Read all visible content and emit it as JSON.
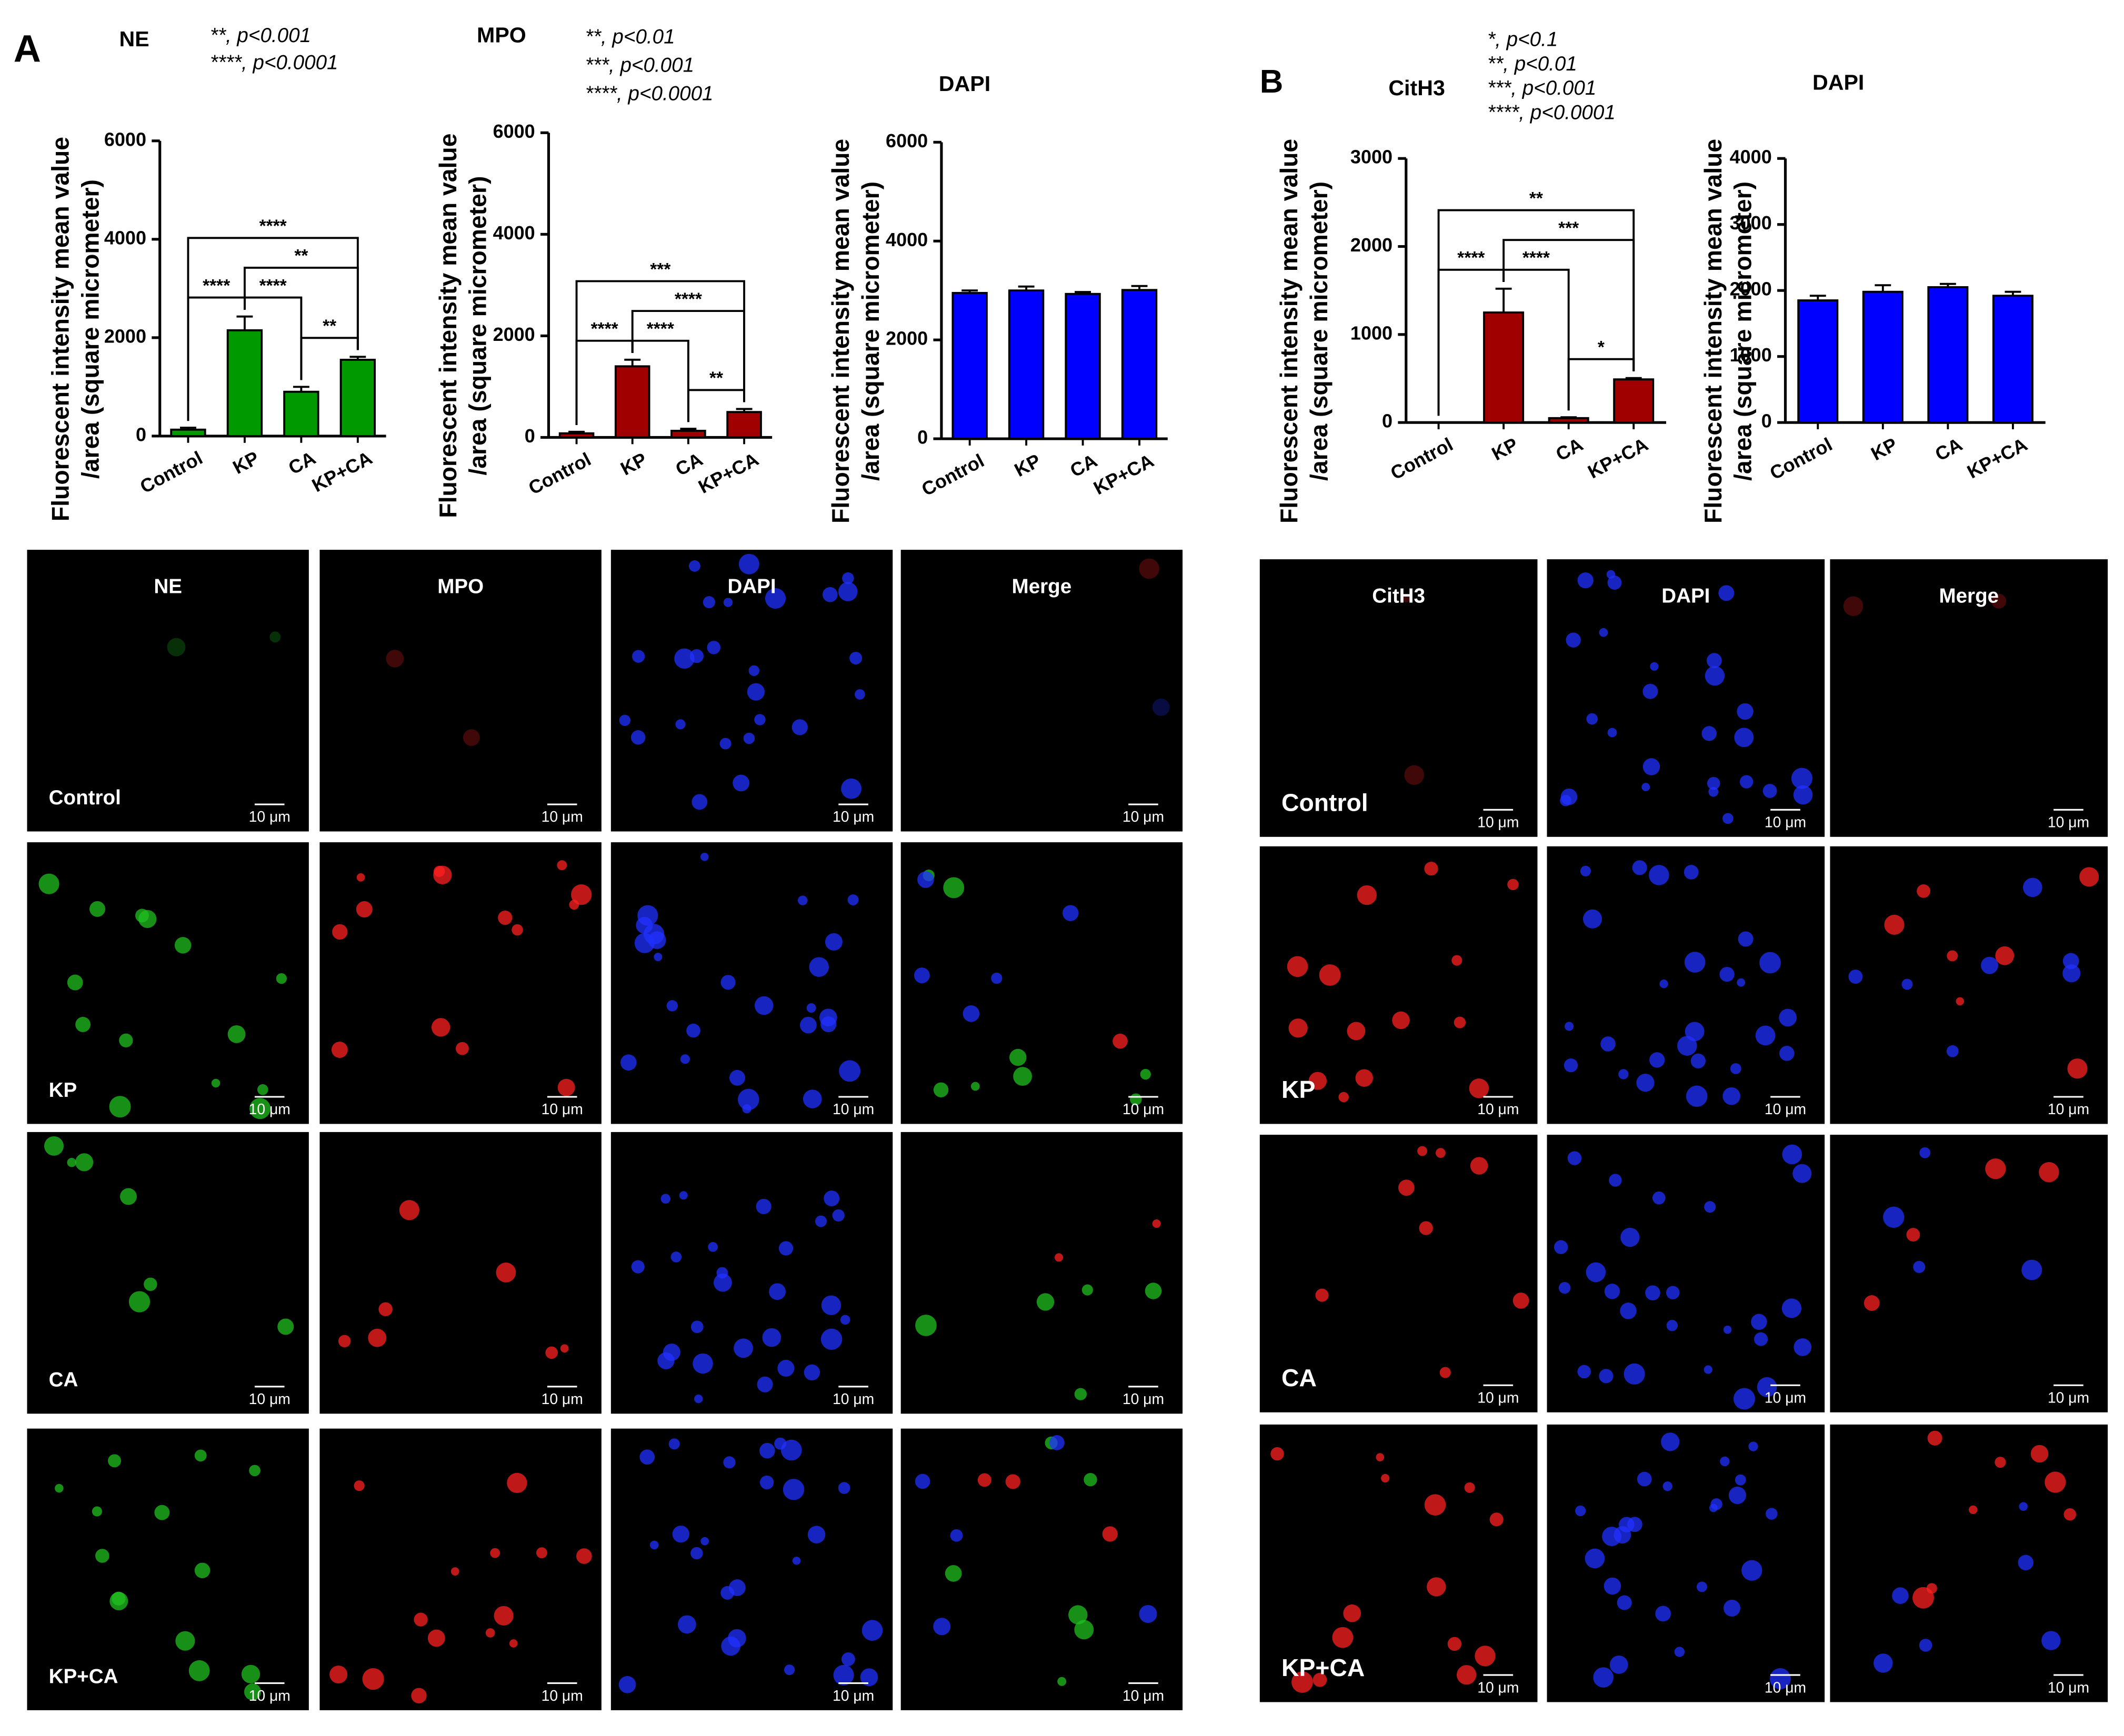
{
  "panel_labels": [
    "A",
    "B"
  ],
  "chart_data": [
    {
      "type": "bar",
      "title": "NE",
      "notes": [
        "**, p<0.001",
        "****, p<0.0001"
      ],
      "y_label": [
        "Fluorescent intensity mean value",
        "/area (square micrometer)"
      ],
      "categories": [
        "Control",
        "KP",
        "CA",
        "KP+CA"
      ],
      "color": "#009900",
      "values": [
        130,
        2150,
        900,
        1550
      ],
      "errors": [
        40,
        280,
        100,
        60
      ],
      "ylim": [
        0,
        6000
      ],
      "yticks": [
        0,
        2000,
        4000,
        6000
      ],
      "brackets": [
        {
          "from": 0,
          "to": 1,
          "label": "****"
        },
        {
          "from": 1,
          "to": 2,
          "label": "****"
        },
        {
          "from": 2,
          "to": 3,
          "label": "**"
        },
        {
          "from": 1,
          "to": 3,
          "label": "**"
        },
        {
          "from": 0,
          "to": 3,
          "label": "****"
        }
      ]
    },
    {
      "type": "bar",
      "title": "MPO",
      "notes": [
        "**, p<0.01",
        "***, p<0.001",
        "****, p<0.0001"
      ],
      "y_label": [
        "Fluorescent intensity mean value",
        "/area (square micrometer)"
      ],
      "categories": [
        "Control",
        "KP",
        "CA",
        "KP+CA"
      ],
      "color": "#a00000",
      "values": [
        80,
        1400,
        130,
        500
      ],
      "errors": [
        30,
        130,
        40,
        60
      ],
      "ylim": [
        0,
        6000
      ],
      "yticks": [
        0,
        2000,
        4000,
        6000
      ],
      "brackets": [
        {
          "from": 0,
          "to": 1,
          "label": "****"
        },
        {
          "from": 1,
          "to": 2,
          "label": "****"
        },
        {
          "from": 2,
          "to": 3,
          "label": "**"
        },
        {
          "from": 1,
          "to": 3,
          "label": "****"
        },
        {
          "from": 0,
          "to": 3,
          "label": "***"
        }
      ]
    },
    {
      "type": "bar",
      "title": "DAPI",
      "y_label": [
        "Fluorescent intensity mean value",
        "/area (square micrometer)"
      ],
      "categories": [
        "Control",
        "KP",
        "CA",
        "KP+CA"
      ],
      "color": "#0000ff",
      "values": [
        2950,
        3000,
        2930,
        3010
      ],
      "errors": [
        50,
        80,
        40,
        80
      ],
      "ylim": [
        0,
        6000
      ],
      "yticks": [
        0,
        2000,
        4000,
        6000
      ]
    },
    {
      "type": "bar",
      "title": "CitH3",
      "notes": [
        "*, p<0.1",
        "**, p<0.01",
        "***, p<0.001",
        "****, p<0.0001"
      ],
      "y_label": [
        "Fluorescent intensity mean value",
        "/area (square micrometer)"
      ],
      "categories": [
        "Control",
        "KP",
        "CA",
        "KP+CA"
      ],
      "color": "#a00000",
      "values": [
        0,
        1250,
        50,
        490
      ],
      "errors": [
        0,
        270,
        10,
        15
      ],
      "ylim": [
        0,
        3000
      ],
      "yticks": [
        0,
        1000,
        2000,
        3000
      ],
      "brackets": [
        {
          "from": 0,
          "to": 1,
          "label": "****"
        },
        {
          "from": 1,
          "to": 2,
          "label": "****"
        },
        {
          "from": 2,
          "to": 3,
          "label": "*"
        },
        {
          "from": 1,
          "to": 3,
          "label": "***"
        },
        {
          "from": 0,
          "to": 3,
          "label": "**"
        }
      ]
    },
    {
      "type": "bar",
      "title": "DAPI",
      "y_label": [
        "Fluorescent intensity mean value",
        "/area (square micrometer)"
      ],
      "categories": [
        "Control",
        "KP",
        "CA",
        "KP+CA"
      ],
      "color": "#0000ff",
      "values": [
        1850,
        1980,
        2050,
        1920
      ],
      "errors": [
        70,
        100,
        50,
        60
      ],
      "ylim": [
        0,
        4000
      ],
      "yticks": [
        0,
        1000,
        2000,
        3000,
        4000
      ]
    }
  ],
  "micrographs": [
    {
      "channels": [
        "NE",
        "MPO",
        "DAPI",
        "Merge"
      ],
      "groups": [
        "Control",
        "KP",
        "CA",
        "KP+CA"
      ]
    },
    {
      "channels": [
        "CitH3",
        "DAPI",
        "Merge"
      ],
      "groups": [
        "Control",
        "KP",
        "CA",
        "KP+CA"
      ]
    }
  ],
  "scale_bar": "10 μm"
}
